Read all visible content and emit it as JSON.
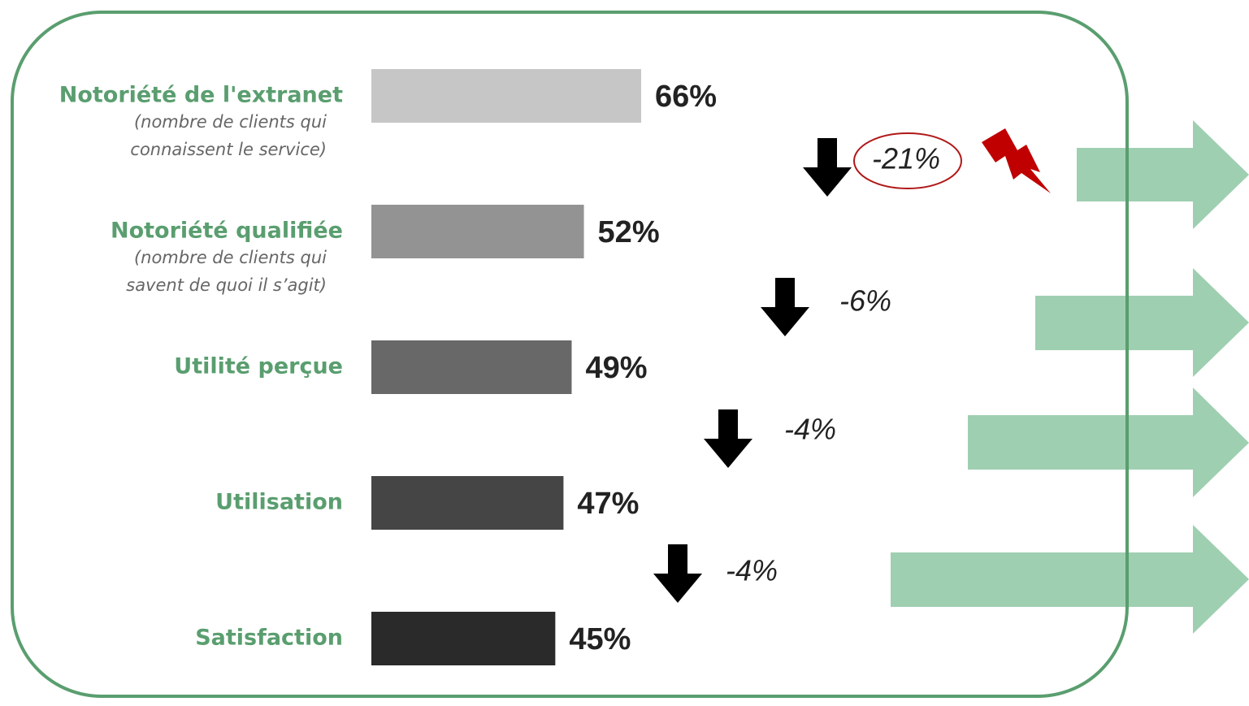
{
  "chart_data": {
    "type": "funnel",
    "categories": [
      "Notoriété de l'extranet",
      "Notoriété qualifiée",
      "Utilité perçue",
      "Utilisation",
      "Satisfaction"
    ],
    "category_notes": [
      [
        "(nombre de clients qui",
        "connaissent le service)"
      ],
      [
        "(nombre de clients qui",
        "savent de quoi il s’agit)"
      ]
    ],
    "values": [
      66,
      52,
      49,
      47,
      45
    ],
    "value_labels": [
      "66%",
      "52%",
      "49%",
      "47%",
      "45%"
    ],
    "colors": [
      "#c6c6c6",
      "#939393",
      "#686868",
      "#454545",
      "#2a2a2a"
    ],
    "changes": [
      -21,
      -6,
      -4,
      -4
    ],
    "change_labels": [
      "-21%",
      "-6%",
      "-4%",
      "-4%"
    ]
  }
}
